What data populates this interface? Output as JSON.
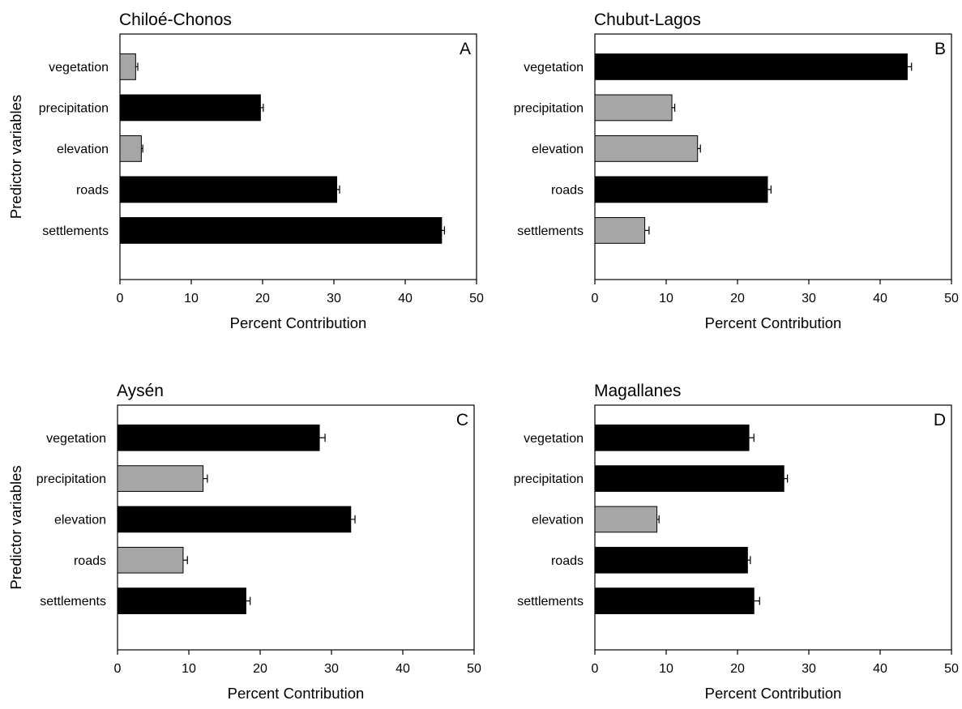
{
  "colors": {
    "dark": "#000000",
    "light": "#a6a6a6"
  },
  "chart_data": [
    {
      "type": "bar",
      "orientation": "horizontal",
      "title": "Chiloé-Chonos",
      "panel_label": "A",
      "xlabel": "Percent Contribution",
      "ylabel": "Predictor variables",
      "xlim": [
        0,
        50
      ],
      "xticks": [
        "0",
        "10",
        "20",
        "30",
        "40",
        "50"
      ],
      "categories": [
        "vegetation",
        "precipitation",
        "elevation",
        "roads",
        "settlements"
      ],
      "values": [
        2.2,
        19.7,
        3.0,
        30.4,
        45.1
      ],
      "errors": [
        0.3,
        0.4,
        0.2,
        0.4,
        0.4
      ],
      "shading": [
        "light",
        "dark",
        "light",
        "dark",
        "dark"
      ]
    },
    {
      "type": "bar",
      "orientation": "horizontal",
      "title": "Chubut-Lagos",
      "panel_label": "B",
      "xlabel": "Percent Contribution",
      "ylabel": "",
      "xlim": [
        0,
        50
      ],
      "xticks": [
        "0",
        "10",
        "20",
        "30",
        "40",
        "50"
      ],
      "categories": [
        "vegetation",
        "precipitation",
        "elevation",
        "roads",
        "settlements"
      ],
      "values": [
        43.8,
        10.8,
        14.4,
        24.2,
        7.0
      ],
      "errors": [
        0.6,
        0.4,
        0.4,
        0.5,
        0.6
      ],
      "shading": [
        "dark",
        "light",
        "light",
        "dark",
        "light"
      ]
    },
    {
      "type": "bar",
      "orientation": "horizontal",
      "title": "Aysén",
      "panel_label": "C",
      "xlabel": "Percent Contribution",
      "ylabel": "Predictor variables",
      "xlim": [
        0,
        50
      ],
      "xticks": [
        "0",
        "10",
        "20",
        "30",
        "40",
        "50"
      ],
      "categories": [
        "vegetation",
        "precipitation",
        "elevation",
        "roads",
        "settlements"
      ],
      "values": [
        28.3,
        12.0,
        32.7,
        9.2,
        18.0
      ],
      "errors": [
        0.8,
        0.6,
        0.6,
        0.6,
        0.6
      ],
      "shading": [
        "dark",
        "light",
        "dark",
        "light",
        "dark"
      ]
    },
    {
      "type": "bar",
      "orientation": "horizontal",
      "title": "Magallanes",
      "panel_label": "D",
      "xlabel": "Percent Contribution",
      "ylabel": "",
      "xlim": [
        0,
        50
      ],
      "xticks": [
        "0",
        "10",
        "20",
        "30",
        "40",
        "50"
      ],
      "categories": [
        "vegetation",
        "precipitation",
        "elevation",
        "roads",
        "settlements"
      ],
      "values": [
        21.6,
        26.5,
        8.7,
        21.4,
        22.3
      ],
      "errors": [
        0.7,
        0.5,
        0.3,
        0.4,
        0.8
      ],
      "shading": [
        "dark",
        "dark",
        "light",
        "dark",
        "dark"
      ]
    }
  ]
}
